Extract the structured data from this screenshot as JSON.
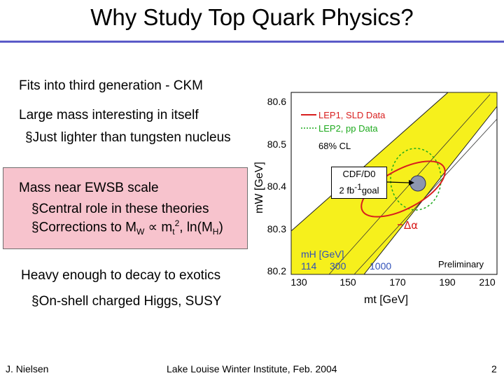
{
  "slide": {
    "title": "Why Study Top Quark Physics?",
    "bullet1": "Fits into third generation - CKM",
    "bullet2": "Large mass interesting in itself",
    "sub2a": "Just lighter than tungsten nucleus",
    "bullet3": "Mass near EWSB scale",
    "sub3a": "Central role in these theories",
    "sub3b_prefix": "Corrections to M",
    "sub3b_sub_w": "W",
    "sub3b_prop": " ∝ m",
    "sub3b_sub_t": "t",
    "sub3b_sup_2": "2",
    "sub3b_mid": ", ln(M",
    "sub3b_sub_h": "H",
    "sub3b_end": ")",
    "bullet4": "Heavy enough to decay to exotics",
    "sub4a": "On-shell charged Higgs, SUSY",
    "sub_marker": "§",
    "pink_color": "#f7c3cd"
  },
  "plot": {
    "legend": [
      "LEP1, SLD Data",
      "LEP2, pp Data",
      "68% CL"
    ],
    "ylabel": "mW [GeV]",
    "xlabel": "mt [GeV]",
    "yticks": [
      "80.6",
      "80.5",
      "80.4",
      "80.3",
      "80.2"
    ],
    "xticks": [
      "130",
      "150",
      "170",
      "190",
      "210"
    ],
    "mh_label": "mH [GeV]",
    "mh_values": [
      "114",
      "300",
      "1000"
    ],
    "preliminary": "Preliminary",
    "delta_alpha": "Δα",
    "callout_line1": "CDF/D0",
    "callout_line2_prefix": "2 fb",
    "callout_sup": "-1",
    "callout_line2_suffix": "goal",
    "band_color": "#f6f01c",
    "ellipse_red": "#d81e1e",
    "ellipse_green": "#1eaa1e"
  },
  "footer": {
    "left": "J. Nielsen",
    "center": "Lake Louise Winter Institute, Feb. 2004",
    "right": "2"
  }
}
